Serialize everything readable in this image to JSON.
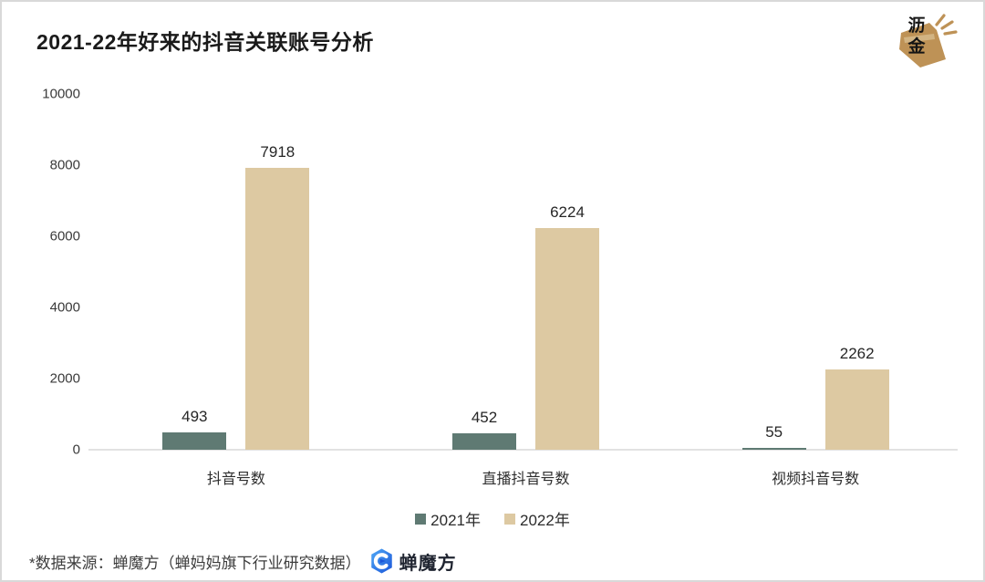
{
  "title": "2021-22年好来的抖音关联账号分析",
  "brand_badge": {
    "line1": "沥",
    "line2": "金",
    "gold_color": "#be9256"
  },
  "chart_data": {
    "type": "bar",
    "title": "2021-22年好来的抖音关联账号分析",
    "categories": [
      "抖音号数",
      "直播抖音号数",
      "视频抖音号数"
    ],
    "series": [
      {
        "name": "2021年",
        "color": "#5f7a73",
        "values": [
          493,
          452,
          55
        ]
      },
      {
        "name": "2022年",
        "color": "#ddc9a2",
        "values": [
          7918,
          6224,
          2262
        ]
      }
    ],
    "xlabel": "",
    "ylabel": "",
    "ylim": [
      0,
      10000
    ],
    "yticks": [
      0,
      2000,
      4000,
      6000,
      8000,
      10000
    ],
    "grid": false,
    "legend_position": "bottom",
    "bar_value_labels": true
  },
  "footer": {
    "source_text": "*数据来源：蝉魔方（蝉妈妈旗下行业研究数据）",
    "logo_text": "蝉魔方",
    "logo_blue_light": "#4fa8f6",
    "logo_blue_dark": "#1b55d8"
  }
}
